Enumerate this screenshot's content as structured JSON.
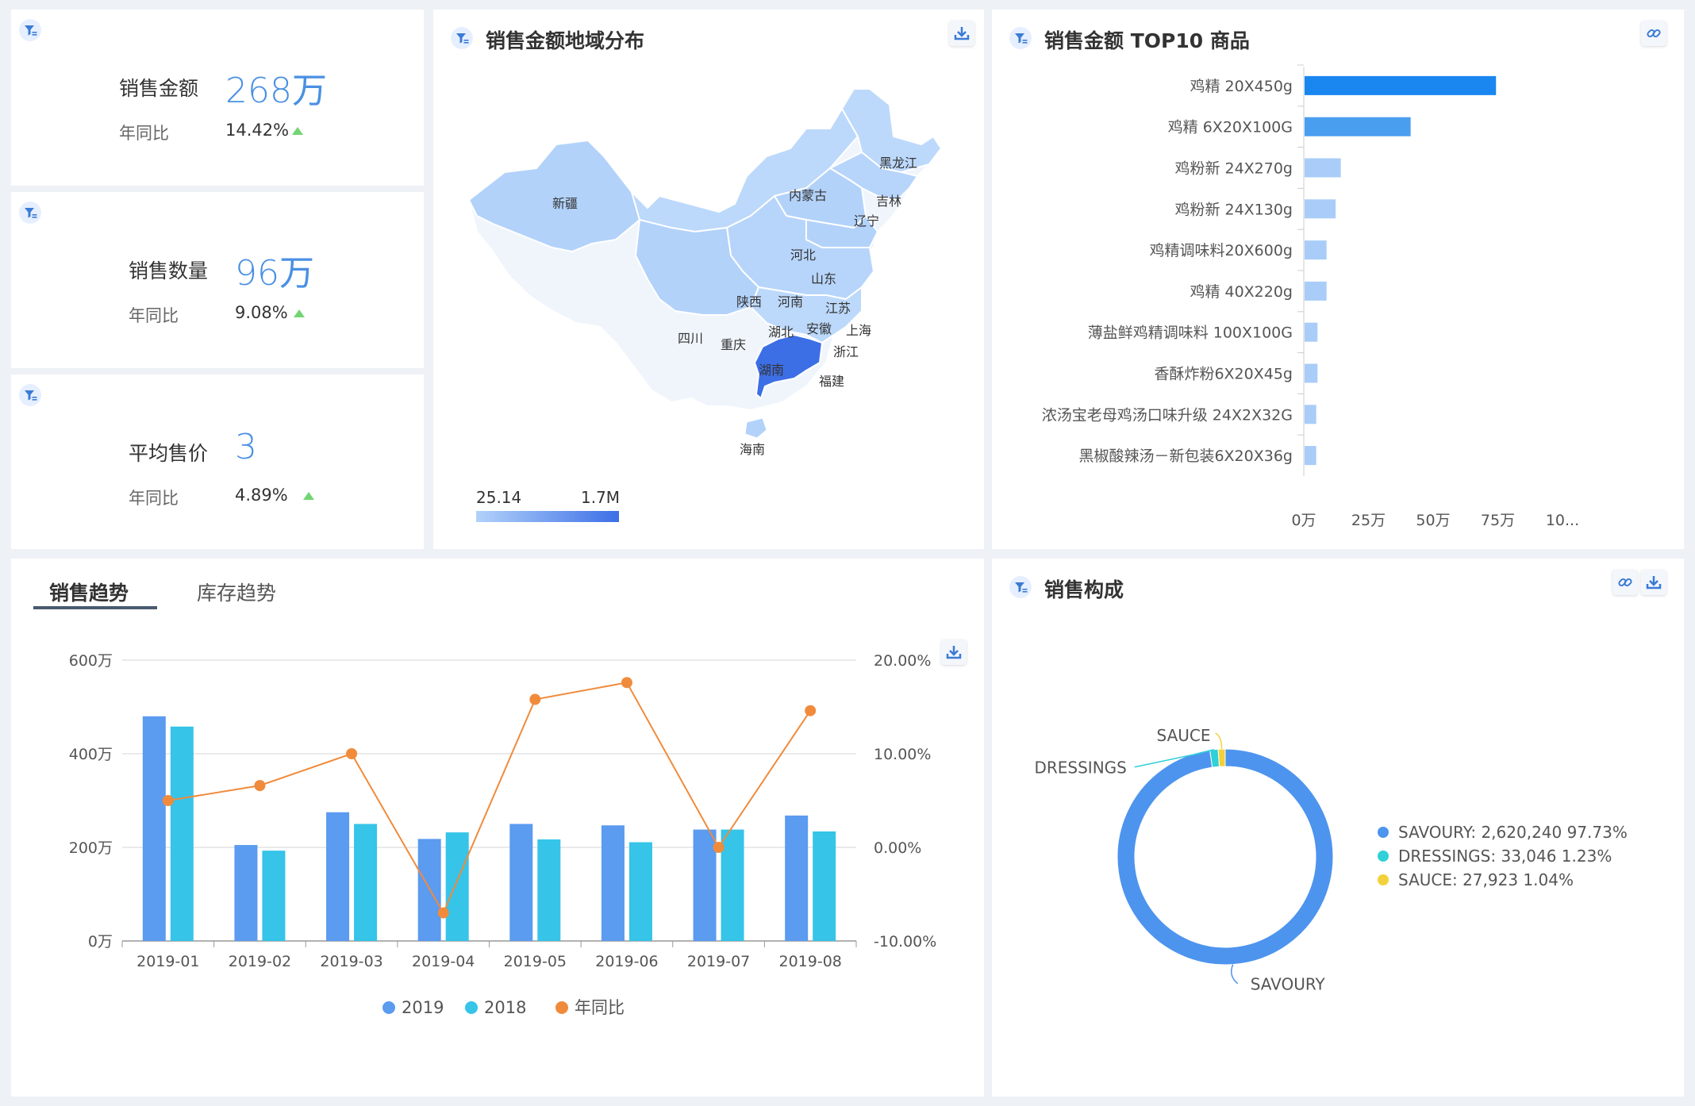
{
  "kpis": [
    {
      "label": "销售金额",
      "value": "268万",
      "sub": "年同比",
      "pct": "14.42%"
    },
    {
      "label": "销售数量",
      "value": "96万",
      "sub": "年同比",
      "pct": "9.08%"
    },
    {
      "label": "平均售价",
      "value": "3",
      "sub": "年同比",
      "pct": "4.89%"
    }
  ],
  "map_panel": {
    "title": "销售金额地域分布",
    "legend_min": "25.14",
    "legend_max": "1.7M",
    "regions": [
      "新疆",
      "内蒙古",
      "黑龙江",
      "吉林",
      "辽宁",
      "河北",
      "山东",
      "陕西",
      "河南",
      "江苏",
      "安徽",
      "上海",
      "湖北",
      "四川",
      "重庆",
      "浙江",
      "湖南",
      "福建",
      "海南"
    ]
  },
  "top10_panel": {
    "title": "销售金额 TOP10 商品",
    "x_ticks": [
      "0万",
      "25万",
      "50万",
      "75万",
      "10..."
    ]
  },
  "trend_panel": {
    "tabs": [
      "销售趋势",
      "库存趋势"
    ],
    "active_tab": 0,
    "y_left_ticks": [
      "600万",
      "400万",
      "200万",
      "0万"
    ],
    "y_right_ticks": [
      "20.00%",
      "10.00%",
      "0.00%",
      "-10.00%"
    ],
    "legend": [
      "2019",
      "2018",
      "年同比"
    ]
  },
  "composition_panel": {
    "title": "销售构成",
    "legend": [
      "SAVOURY: 2,620,240 97.73%",
      "DRESSINGS: 33,046 1.23%",
      "SAUCE: 27,923 1.04%"
    ],
    "labels": [
      "SAUCE",
      "DRESSINGS",
      "SAVOURY"
    ]
  },
  "colors": {
    "accent": "#4a90e2",
    "bar2019": "#5b9bf0",
    "bar2018": "#36c4e8",
    "line": "#f08b3c",
    "top_bar": "#1a87f0",
    "savoury": "#4d94ee",
    "dressings": "#2fd0d8",
    "sauce": "#f3d13a"
  },
  "chart_data": [
    {
      "type": "bar",
      "title": "销售金额 TOP10 商品",
      "orientation": "horizontal",
      "categories": [
        "鸡精 20X450g",
        "鸡精 6X20X100G",
        "鸡粉新 24X270g",
        "鸡粉新 24X130g",
        "鸡精调味料20X600g",
        "鸡精 40X220g",
        "薄盐鲜鸡精调味料 100X100G",
        "香酥炸粉6X20X45g",
        "浓汤宝老母鸡汤口味升级 24X2X32G",
        "黑椒酸辣汤－新包装6X20X36g"
      ],
      "values": [
        74,
        41,
        14,
        12,
        8.5,
        8.5,
        5,
        5,
        4.5,
        4.5
      ],
      "unit": "万",
      "xlim": [
        0,
        100
      ]
    },
    {
      "type": "bar",
      "title": "销售趋势",
      "categories": [
        "2019-01",
        "2019-02",
        "2019-03",
        "2019-04",
        "2019-05",
        "2019-06",
        "2019-07",
        "2019-08"
      ],
      "series": [
        {
          "name": "2019",
          "type": "bar",
          "axis": "left",
          "values": [
            480,
            205,
            275,
            218,
            250,
            247,
            238,
            268
          ]
        },
        {
          "name": "2018",
          "type": "bar",
          "axis": "left",
          "values": [
            458,
            193,
            250,
            232,
            217,
            211,
            238,
            234
          ]
        },
        {
          "name": "年同比",
          "type": "line",
          "axis": "right",
          "values": [
            5.0,
            6.6,
            10.0,
            -7.0,
            15.8,
            17.6,
            0.0,
            14.6
          ]
        }
      ],
      "ylim_left": [
        0,
        600
      ],
      "ylim_right": [
        -10,
        20
      ],
      "legend": "bottom"
    },
    {
      "type": "pie",
      "title": "销售构成",
      "donut": true,
      "slices": [
        {
          "name": "SAVOURY",
          "value": 2620240,
          "percent": 97.73
        },
        {
          "name": "DRESSINGS",
          "value": 33046,
          "percent": 1.23
        },
        {
          "name": "SAUCE",
          "value": 27923,
          "percent": 1.04
        }
      ],
      "legend": "right"
    }
  ]
}
